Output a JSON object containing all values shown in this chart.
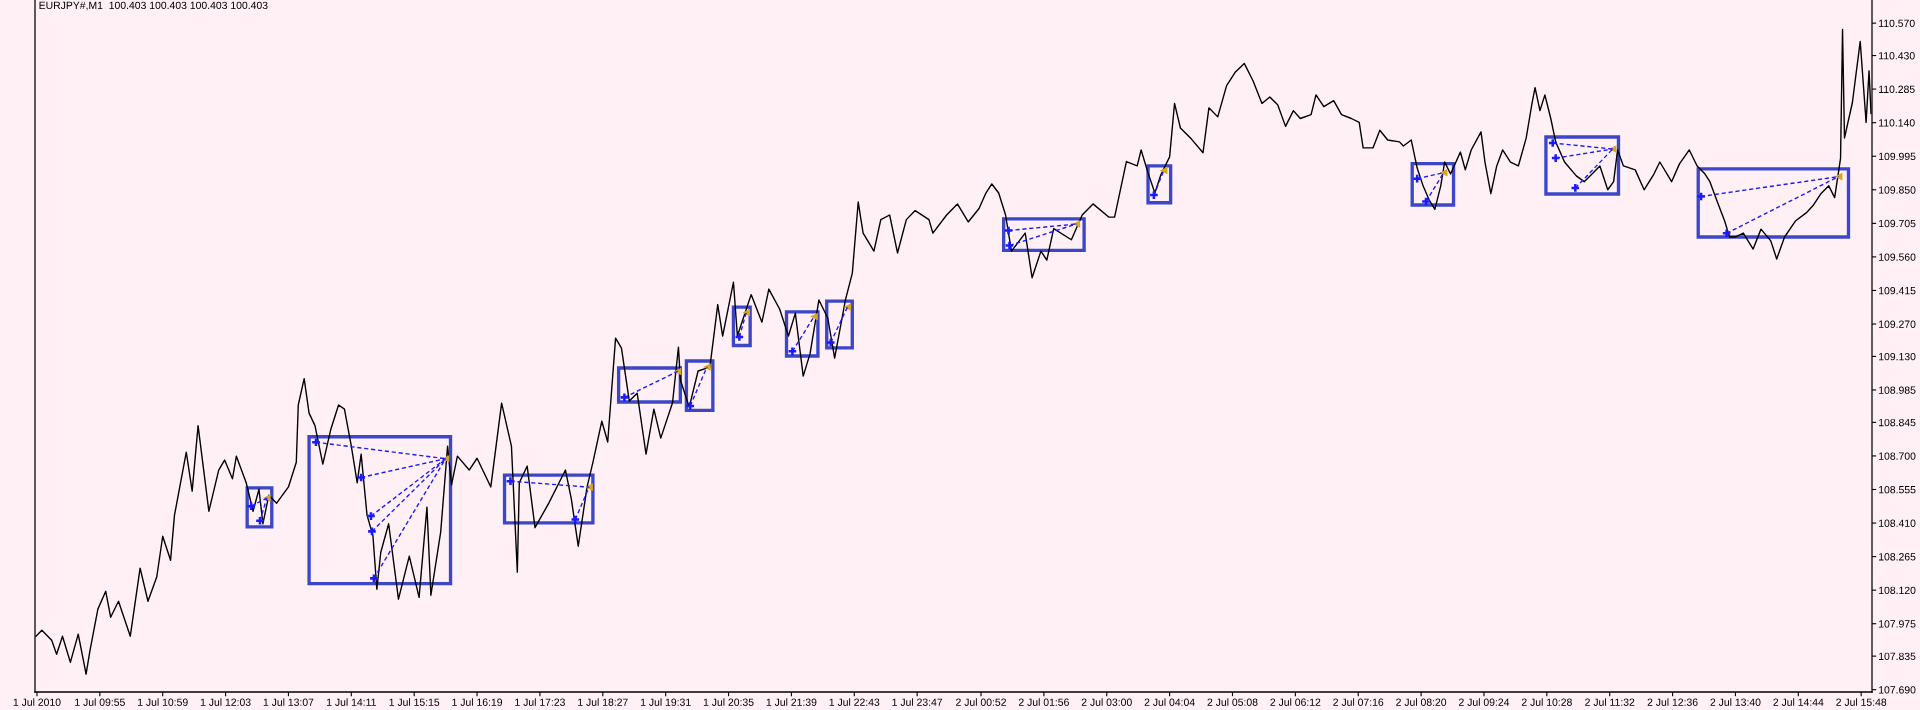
{
  "chart_data": {
    "type": "line",
    "title": "EURJPY#,M1  100.403 100.403 100.403 100.403",
    "grid": false,
    "xlim": [
      "2010-07-01T08:49",
      "2010-07-02T15:59"
    ],
    "ylim": [
      107.68,
      110.67
    ],
    "xticks": [
      {
        "value": "2010-07-01T08:51",
        "label": "1 Jul 2010"
      },
      {
        "value": "2010-07-01T09:55",
        "label": "1 Jul 09:55"
      },
      {
        "value": "2010-07-01T10:59",
        "label": "1 Jul 10:59"
      },
      {
        "value": "2010-07-01T12:03",
        "label": "1 Jul 12:03"
      },
      {
        "value": "2010-07-01T13:07",
        "label": "1 Jul 13:07"
      },
      {
        "value": "2010-07-01T14:11",
        "label": "1 Jul 14:11"
      },
      {
        "value": "2010-07-01T15:15",
        "label": "1 Jul 15:15"
      },
      {
        "value": "2010-07-01T16:19",
        "label": "1 Jul 16:19"
      },
      {
        "value": "2010-07-01T17:23",
        "label": "1 Jul 17:23"
      },
      {
        "value": "2010-07-01T18:27",
        "label": "1 Jul 18:27"
      },
      {
        "value": "2010-07-01T19:31",
        "label": "1 Jul 19:31"
      },
      {
        "value": "2010-07-01T20:35",
        "label": "1 Jul 20:35"
      },
      {
        "value": "2010-07-01T21:39",
        "label": "1 Jul 21:39"
      },
      {
        "value": "2010-07-01T22:43",
        "label": "1 Jul 22:43"
      },
      {
        "value": "2010-07-01T23:47",
        "label": "1 Jul 23:47"
      },
      {
        "value": "2010-07-02T00:52",
        "label": "2 Jul 00:52"
      },
      {
        "value": "2010-07-02T01:56",
        "label": "2 Jul 01:56"
      },
      {
        "value": "2010-07-02T03:00",
        "label": "2 Jul 03:00"
      },
      {
        "value": "2010-07-02T04:04",
        "label": "2 Jul 04:04"
      },
      {
        "value": "2010-07-02T05:08",
        "label": "2 Jul 05:08"
      },
      {
        "value": "2010-07-02T06:12",
        "label": "2 Jul 06:12"
      },
      {
        "value": "2010-07-02T07:16",
        "label": "2 Jul 07:16"
      },
      {
        "value": "2010-07-02T08:20",
        "label": "2 Jul 08:20"
      },
      {
        "value": "2010-07-02T09:24",
        "label": "2 Jul 09:24"
      },
      {
        "value": "2010-07-02T10:28",
        "label": "2 Jul 10:28"
      },
      {
        "value": "2010-07-02T11:32",
        "label": "2 Jul 11:32"
      },
      {
        "value": "2010-07-02T12:36",
        "label": "2 Jul 12:36"
      },
      {
        "value": "2010-07-02T13:40",
        "label": "2 Jul 13:40"
      },
      {
        "value": "2010-07-02T14:44",
        "label": "2 Jul 14:44"
      },
      {
        "value": "2010-07-02T15:48",
        "label": "2 Jul 15:48"
      }
    ],
    "yticks": [
      {
        "value": 110.57,
        "label": "110.570"
      },
      {
        "value": 110.43,
        "label": "110.430"
      },
      {
        "value": 110.285,
        "label": "110.285"
      },
      {
        "value": 110.14,
        "label": "110.140"
      },
      {
        "value": 109.995,
        "label": "109.995"
      },
      {
        "value": 109.85,
        "label": "109.850"
      },
      {
        "value": 109.705,
        "label": "109.705"
      },
      {
        "value": 109.56,
        "label": "109.560"
      },
      {
        "value": 109.415,
        "label": "109.415"
      },
      {
        "value": 109.27,
        "label": "109.270"
      },
      {
        "value": 109.13,
        "label": "109.130"
      },
      {
        "value": 108.985,
        "label": "108.985"
      },
      {
        "value": 108.845,
        "label": "108.845"
      },
      {
        "value": 108.7,
        "label": "108.700"
      },
      {
        "value": 108.555,
        "label": "108.555"
      },
      {
        "value": 108.41,
        "label": "108.410"
      },
      {
        "value": 108.265,
        "label": "108.265"
      },
      {
        "value": 108.12,
        "label": "108.120"
      },
      {
        "value": 107.975,
        "label": "107.975"
      },
      {
        "value": 107.835,
        "label": "107.835"
      },
      {
        "value": 107.69,
        "label": "107.690"
      }
    ],
    "series": [
      {
        "color": "#000000",
        "line_style": "solid",
        "marker": "none",
        "x": [
          "2010-07-01T08:50",
          "2010-07-01T08:56",
          "2010-07-01T09:06",
          "2010-07-01T09:11",
          "2010-07-01T09:17",
          "2010-07-01T09:25",
          "2010-07-01T09:33",
          "2010-07-01T09:41",
          "2010-07-01T09:45",
          "2010-07-01T09:53",
          "2010-07-01T10:01",
          "2010-07-01T10:06",
          "2010-07-01T10:14",
          "2010-07-01T10:26",
          "2010-07-01T10:36",
          "2010-07-01T10:44",
          "2010-07-01T10:53",
          "2010-07-01T10:59",
          "2010-07-01T11:07",
          "2010-07-01T11:11",
          "2010-07-01T11:23",
          "2010-07-01T11:29",
          "2010-07-01T11:35",
          "2010-07-01T11:46",
          "2010-07-01T11:56",
          "2010-07-01T12:02",
          "2010-07-01T12:10",
          "2010-07-01T12:14",
          "2010-07-01T12:24",
          "2010-07-01T12:31",
          "2010-07-01T12:37",
          "2010-07-01T12:41",
          "2010-07-01T12:47",
          "2010-07-01T12:55",
          "2010-07-01T13:07",
          "2010-07-01T13:15",
          "2010-07-01T13:17",
          "2010-07-01T13:23",
          "2010-07-01T13:28",
          "2010-07-01T13:34",
          "2010-07-01T13:42",
          "2010-07-01T13:50",
          "2010-07-01T13:58",
          "2010-07-01T14:04",
          "2010-07-01T14:11",
          "2010-07-01T14:17",
          "2010-07-01T14:21",
          "2010-07-01T14:27",
          "2010-07-01T14:33",
          "2010-07-01T14:37",
          "2010-07-01T14:41",
          "2010-07-01T14:49",
          "2010-07-01T14:59",
          "2010-07-01T15:10",
          "2010-07-01T15:20",
          "2010-07-01T15:28",
          "2010-07-01T15:32",
          "2010-07-01T15:42",
          "2010-07-01T15:49",
          "2010-07-01T15:53",
          "2010-07-01T15:59",
          "2010-07-01T16:11",
          "2010-07-01T16:19",
          "2010-07-01T16:33",
          "2010-07-01T16:44",
          "2010-07-01T16:54",
          "2010-07-01T17:00",
          "2010-07-01T17:02",
          "2010-07-01T17:10",
          "2010-07-01T17:18",
          "2010-07-01T17:32",
          "2010-07-01T17:49",
          "2010-07-01T17:55",
          "2010-07-01T18:02",
          "2010-07-01T18:11",
          "2010-07-01T18:17",
          "2010-07-01T18:26",
          "2010-07-01T18:32",
          "2010-07-01T18:40",
          "2010-07-01T18:46",
          "2010-07-01T18:54",
          "2010-07-01T19:02",
          "2010-07-01T19:11",
          "2010-07-01T19:19",
          "2010-07-01T19:26",
          "2010-07-01T19:38",
          "2010-07-01T19:44",
          "2010-07-01T19:46",
          "2010-07-01T19:55",
          "2010-07-01T20:04",
          "2010-07-01T20:16",
          "2010-07-01T20:20",
          "2010-07-01T20:24",
          "2010-07-01T20:29",
          "2010-07-01T20:40",
          "2010-07-01T20:44",
          "2010-07-01T20:58",
          "2010-07-01T21:09",
          "2010-07-01T21:16",
          "2010-07-01T21:27",
          "2010-07-01T21:36",
          "2010-07-01T21:43",
          "2010-07-01T21:51",
          "2010-07-01T21:58",
          "2010-07-01T22:07",
          "2010-07-01T22:16",
          "2010-07-01T22:23",
          "2010-07-01T22:34",
          "2010-07-01T22:41",
          "2010-07-01T22:47",
          "2010-07-01T22:52",
          "2010-07-01T23:03",
          "2010-07-01T23:10",
          "2010-07-01T23:19",
          "2010-07-01T23:27",
          "2010-07-01T23:36",
          "2010-07-01T23:45",
          "2010-07-01T23:59",
          "2010-07-02T00:03",
          "2010-07-02T00:17",
          "2010-07-02T00:28",
          "2010-07-02T00:39",
          "2010-07-02T00:50",
          "2010-07-02T00:57",
          "2010-07-02T01:03",
          "2010-07-02T01:10",
          "2010-07-02T01:17",
          "2010-07-02T01:23",
          "2010-07-02T01:37",
          "2010-07-02T01:44",
          "2010-07-02T01:53",
          "2010-07-02T01:59",
          "2010-07-02T02:06",
          "2010-07-02T02:24",
          "2010-07-02T02:35",
          "2010-07-02T02:46",
          "2010-07-02T03:02",
          "2010-07-02T03:08",
          "2010-07-02T03:20",
          "2010-07-02T03:31",
          "2010-07-02T03:35",
          "2010-07-02T03:42",
          "2010-07-02T03:49",
          "2010-07-02T03:55",
          "2010-07-02T04:04",
          "2010-07-02T04:09",
          "2010-07-02T04:15",
          "2010-07-02T04:26",
          "2010-07-02T04:38",
          "2010-07-02T04:44",
          "2010-07-02T04:53",
          "2010-07-02T05:02",
          "2010-07-02T05:11",
          "2010-07-02T05:20",
          "2010-07-02T05:29",
          "2010-07-02T05:38",
          "2010-07-02T05:46",
          "2010-07-02T05:54",
          "2010-07-02T06:02",
          "2010-07-02T06:10",
          "2010-07-02T06:17",
          "2010-07-02T06:28",
          "2010-07-02T06:33",
          "2010-07-02T06:41",
          "2010-07-02T06:51",
          "2010-07-02T06:59",
          "2010-07-02T07:09",
          "2010-07-02T07:17",
          "2010-07-02T07:21",
          "2010-07-02T07:31",
          "2010-07-02T07:38",
          "2010-07-02T07:46",
          "2010-07-02T07:58",
          "2010-07-02T08:02",
          "2010-07-02T08:10",
          "2010-07-02T08:16",
          "2010-07-02T08:22",
          "2010-07-02T08:28",
          "2010-07-02T08:34",
          "2010-07-02T08:40",
          "2010-07-02T08:44",
          "2010-07-02T08:50",
          "2010-07-02T09:00",
          "2010-07-02T09:05",
          "2010-07-02T09:11",
          "2010-07-02T09:21",
          "2010-07-02T09:25",
          "2010-07-02T09:31",
          "2010-07-02T09:37",
          "2010-07-02T09:43",
          "2010-07-02T09:51",
          "2010-07-02T09:59",
          "2010-07-02T10:07",
          "2010-07-02T10:13",
          "2010-07-02T10:16",
          "2010-07-02T10:21",
          "2010-07-02T10:26",
          "2010-07-02T10:32",
          "2010-07-02T10:37",
          "2010-07-02T10:46",
          "2010-07-02T10:58",
          "2010-07-02T11:06",
          "2010-07-02T11:14",
          "2010-07-02T11:22",
          "2010-07-02T11:30",
          "2010-07-02T11:36",
          "2010-07-02T11:40",
          "2010-07-02T11:46",
          "2010-07-02T11:58",
          "2010-07-02T12:07",
          "2010-07-02T12:17",
          "2010-07-02T12:23",
          "2010-07-02T12:35",
          "2010-07-02T12:43",
          "2010-07-02T12:53",
          "2010-07-02T13:01",
          "2010-07-02T13:09",
          "2010-07-02T13:14",
          "2010-07-02T13:20",
          "2010-07-02T13:29",
          "2010-07-02T13:34",
          "2010-07-02T13:40",
          "2010-07-02T13:48",
          "2010-07-02T13:58",
          "2010-07-02T14:06",
          "2010-07-02T14:16",
          "2010-07-02T14:22",
          "2010-07-02T14:30",
          "2010-07-02T14:41",
          "2010-07-02T14:52",
          "2010-07-02T14:59",
          "2010-07-02T15:07",
          "2010-07-02T15:15",
          "2010-07-02T15:21",
          "2010-07-02T15:27",
          "2010-07-02T15:29",
          "2010-07-02T15:31",
          "2010-07-02T15:39",
          "2010-07-02T15:47",
          "2010-07-02T15:53",
          "2010-07-02T15:56",
          "2010-07-02T15:58"
        ],
        "values": [
          107.921,
          107.947,
          107.904,
          107.843,
          107.921,
          107.808,
          107.93,
          107.757,
          107.86,
          108.038,
          108.115,
          108.003,
          108.072,
          107.921,
          108.215,
          108.072,
          108.178,
          108.353,
          108.249,
          108.444,
          108.716,
          108.548,
          108.831,
          108.461,
          108.639,
          108.682,
          108.601,
          108.699,
          108.584,
          108.461,
          108.556,
          108.407,
          108.53,
          108.496,
          108.566,
          108.673,
          108.92,
          109.034,
          108.885,
          108.831,
          108.665,
          108.813,
          108.92,
          108.902,
          108.742,
          108.584,
          108.708,
          108.444,
          108.355,
          108.124,
          108.284,
          108.407,
          108.081,
          108.267,
          108.089,
          108.479,
          108.098,
          108.372,
          108.742,
          108.575,
          108.699,
          108.639,
          108.69,
          108.566,
          108.928,
          108.742,
          108.198,
          108.584,
          108.656,
          108.39,
          108.496,
          108.639,
          108.513,
          108.31,
          108.566,
          108.673,
          108.85,
          108.76,
          109.209,
          109.166,
          108.937,
          108.971,
          108.708,
          108.902,
          108.777,
          108.93,
          109.17,
          109.028,
          108.911,
          109.067,
          109.084,
          109.218,
          109.354,
          109.218,
          109.451,
          109.218,
          109.397,
          109.278,
          109.421,
          109.335,
          109.218,
          109.317,
          109.045,
          109.142,
          109.374,
          109.296,
          109.123,
          109.374,
          109.49,
          109.797,
          109.663,
          109.585,
          109.721,
          109.741,
          109.577,
          109.721,
          109.76,
          109.721,
          109.663,
          109.741,
          109.789,
          109.711,
          109.769,
          109.836,
          109.875,
          109.836,
          109.741,
          109.585,
          109.663,
          109.47,
          109.585,
          109.546,
          109.682,
          109.634,
          109.741,
          109.789,
          109.732,
          109.732,
          109.972,
          109.953,
          110.022,
          109.923,
          109.836,
          109.914,
          109.992,
          110.223,
          110.117,
          110.07,
          110.01,
          110.204,
          110.165,
          110.3,
          110.359,
          110.396,
          110.32,
          110.223,
          110.251,
          110.217,
          110.124,
          110.192,
          110.158,
          110.175,
          110.26,
          110.209,
          110.235,
          110.175,
          110.158,
          110.141,
          110.031,
          110.031,
          110.107,
          110.065,
          110.057,
          110.039,
          110.065,
          109.944,
          109.867,
          109.808,
          109.765,
          109.867,
          109.97,
          109.918,
          110.013,
          109.936,
          110.022,
          110.1,
          109.97,
          109.833,
          109.953,
          110.022,
          109.97,
          109.953,
          110.074,
          110.226,
          110.291,
          110.192,
          110.26,
          110.158,
          110.057,
          109.97,
          109.91,
          109.885,
          109.918,
          109.953,
          109.85,
          109.885,
          110.022,
          109.953,
          109.936,
          109.85,
          109.918,
          109.97,
          109.885,
          109.962,
          110.022,
          109.953,
          109.918,
          109.885,
          109.816,
          109.715,
          109.646,
          109.646,
          109.663,
          109.594,
          109.68,
          109.629,
          109.551,
          109.646,
          109.715,
          109.75,
          109.782,
          109.833,
          109.867,
          109.816,
          109.987,
          110.543,
          110.074,
          110.226,
          110.491,
          110.141,
          110.364,
          110.18
        ]
      },
      {
        "type": "line",
        "color": "#1a1aff",
        "line_style": "dashed",
        "marker": "none",
        "x": [
          "2010-07-01T12:29",
          "2010-07-01T12:45",
          null,
          "2010-07-01T12:38",
          "2010-07-01T12:45",
          null,
          "2010-07-01T13:35",
          "2010-07-01T15:47",
          null,
          "2010-07-01T14:21",
          "2010-07-01T15:47",
          null,
          "2010-07-01T14:31",
          "2010-07-01T15:47",
          null,
          "2010-07-01T14:32",
          "2010-07-01T15:47",
          null,
          "2010-07-01T14:34",
          "2010-07-01T15:47",
          null,
          "2010-07-01T16:53",
          "2010-07-01T18:13",
          null,
          "2010-07-01T17:59",
          "2010-07-01T18:13",
          null,
          "2010-07-01T18:49",
          "2010-07-01T19:43",
          null,
          "2010-07-01T19:56",
          "2010-07-01T20:13",
          null,
          "2010-07-01T20:46",
          "2010-07-01T20:53",
          null,
          "2010-07-01T21:40",
          "2010-07-01T22:02",
          null,
          "2010-07-01T22:19",
          "2010-07-01T22:36",
          null,
          "2010-07-02T01:20",
          "2010-07-02T02:29",
          null,
          "2010-07-02T03:48",
          "2010-07-02T03:58",
          null,
          "2010-07-02T08:16",
          "2010-07-02T08:43",
          null,
          "2010-07-02T08:25",
          "2010-07-02T08:43",
          null,
          "2010-07-02T10:34",
          "2010-07-02T11:35",
          null,
          "2010-07-02T10:37",
          "2010-07-02T11:35",
          null,
          "2010-07-02T10:57",
          "2010-07-02T11:35",
          null,
          "2010-07-02T13:05",
          "2010-07-02T15:25",
          null,
          "2010-07-02T13:31",
          "2010-07-02T15:25"
        ],
        "values": [
          108.483,
          108.518,
          null,
          108.42,
          108.518,
          null,
          108.759,
          108.688,
          null,
          108.607,
          108.688,
          null,
          108.44,
          108.688,
          null,
          108.374,
          108.688,
          null,
          108.171,
          108.688,
          null,
          108.591,
          108.565,
          null,
          108.425,
          108.565,
          null,
          108.953,
          109.065,
          null,
          108.916,
          109.084,
          null,
          109.214,
          109.319,
          null,
          109.152,
          109.302,
          null,
          109.19,
          109.343,
          null,
          109.674,
          109.702,
          null,
          109.827,
          109.933,
          null,
          109.898,
          109.924,
          null,
          109.799,
          109.924,
          null,
          110.052,
          110.026,
          null,
          109.987,
          110.026,
          null,
          109.858,
          110.026,
          null,
          109.821,
          109.907,
          null,
          109.662,
          109.907
        ]
      },
      {
        "type": "line",
        "color": "#1a1aff",
        "line_style": "dashed",
        "marker": "none",
        "x": [
          "2010-07-02T01:21",
          "2010-07-02T02:29"
        ],
        "values": [
          109.609,
          109.702
        ]
      },
      {
        "type": "scatter",
        "color": "#1a1aff",
        "marker": "cross",
        "x": [
          "2010-07-01T12:29",
          "2010-07-01T12:38",
          "2010-07-01T13:35",
          "2010-07-01T14:21",
          "2010-07-01T14:31",
          "2010-07-01T14:32",
          "2010-07-01T14:34",
          "2010-07-01T16:53",
          "2010-07-01T17:59",
          "2010-07-01T18:49",
          "2010-07-01T19:56",
          "2010-07-01T20:46",
          "2010-07-01T21:40",
          "2010-07-01T22:19",
          "2010-07-02T01:20",
          "2010-07-02T01:21",
          "2010-07-02T03:48",
          "2010-07-02T08:16",
          "2010-07-02T08:25",
          "2010-07-02T10:34",
          "2010-07-02T10:37",
          "2010-07-02T10:57",
          "2010-07-02T13:05",
          "2010-07-02T13:31"
        ],
        "values": [
          108.483,
          108.42,
          108.759,
          108.607,
          108.44,
          108.374,
          108.171,
          108.591,
          108.425,
          108.953,
          108.916,
          109.214,
          109.152,
          109.19,
          109.674,
          109.609,
          109.827,
          109.898,
          109.799,
          110.052,
          109.987,
          109.858,
          109.821,
          109.662
        ]
      },
      {
        "type": "scatter",
        "color": "#daa520",
        "marker": "triangle",
        "x": [
          "2010-07-01T12:45",
          "2010-07-01T15:47",
          "2010-07-01T18:13",
          "2010-07-01T19:43",
          "2010-07-01T20:13",
          "2010-07-01T20:53",
          "2010-07-01T22:02",
          "2010-07-01T22:36",
          "2010-07-02T02:29",
          "2010-07-02T03:58",
          "2010-07-02T08:43",
          "2010-07-02T11:35",
          "2010-07-02T15:25"
        ],
        "values": [
          108.518,
          108.688,
          108.565,
          109.065,
          109.084,
          109.319,
          109.302,
          109.343,
          109.702,
          109.933,
          109.924,
          110.026,
          109.907
        ]
      }
    ]
  }
}
